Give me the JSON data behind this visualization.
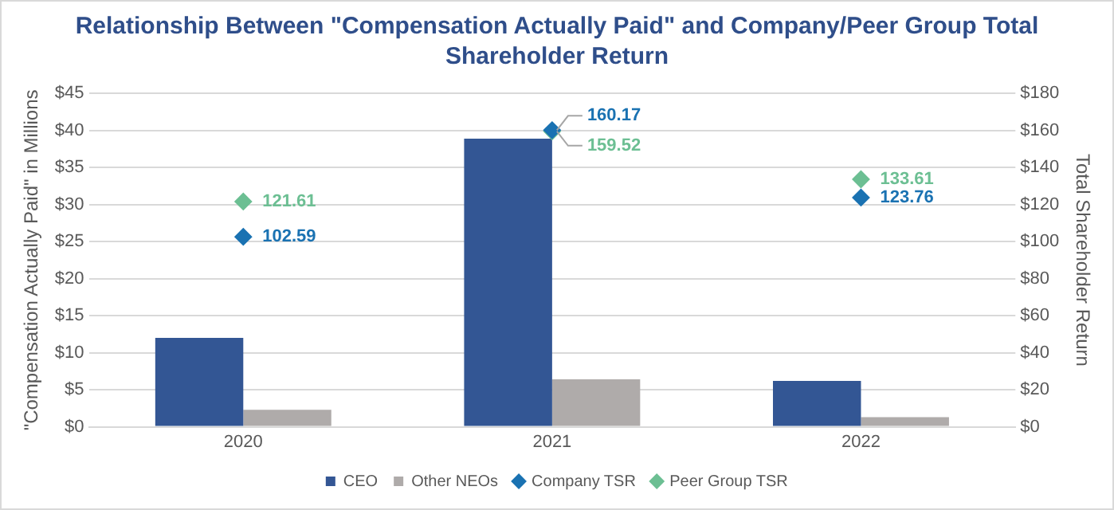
{
  "chart_data": {
    "type": "bar",
    "title": "Relationship Between \"Compensation Actually Paid\" and Company/Peer Group Total Shareholder Return",
    "ylabel": "\"Compensation Actually Paid\" in Millions",
    "y2label": "Total Shareholder Return",
    "categories": [
      "2020",
      "2021",
      "2022"
    ],
    "series": [
      {
        "name": "CEO",
        "color": "#335694",
        "values": [
          12.0,
          38.9,
          6.2
        ]
      },
      {
        "name": "Other NEOs",
        "color": "#afabaa",
        "values": [
          2.3,
          6.4,
          1.3
        ]
      },
      {
        "name": "Company TSR",
        "type": "scatter",
        "axis": "y2",
        "color": "#1a72b2",
        "values": [
          102.59,
          160.17,
          123.76
        ],
        "value_labels": [
          "102.59",
          "160.17",
          "123.76"
        ]
      },
      {
        "name": "Peer Group TSR",
        "type": "scatter",
        "axis": "y2",
        "color": "#6cbf93",
        "values": [
          121.61,
          159.52,
          133.61
        ],
        "value_labels": [
          "121.61",
          "159.52",
          "133.61"
        ]
      }
    ],
    "ylim": [
      0,
      45
    ],
    "yticks": [
      {
        "value": 0,
        "label": "$0"
      },
      {
        "value": 5,
        "label": "$5"
      },
      {
        "value": 10,
        "label": "$10"
      },
      {
        "value": 15,
        "label": "$15"
      },
      {
        "value": 20,
        "label": "$20"
      },
      {
        "value": 25,
        "label": "$25"
      },
      {
        "value": 30,
        "label": "$30"
      },
      {
        "value": 35,
        "label": "$35"
      },
      {
        "value": 40,
        "label": "$40"
      },
      {
        "value": 45,
        "label": "$45"
      }
    ],
    "y2lim": [
      0,
      180
    ],
    "y2ticks": [
      {
        "value": 0,
        "label": "$0"
      },
      {
        "value": 20,
        "label": "$20"
      },
      {
        "value": 40,
        "label": "$40"
      },
      {
        "value": 60,
        "label": "$60"
      },
      {
        "value": 80,
        "label": "$80"
      },
      {
        "value": 100,
        "label": "$100"
      },
      {
        "value": 120,
        "label": "$120"
      },
      {
        "value": 140,
        "label": "$140"
      },
      {
        "value": 160,
        "label": "$160"
      },
      {
        "value": 180,
        "label": "$180"
      }
    ],
    "grid": "y",
    "legend": "bottom",
    "marker": "diamond"
  }
}
